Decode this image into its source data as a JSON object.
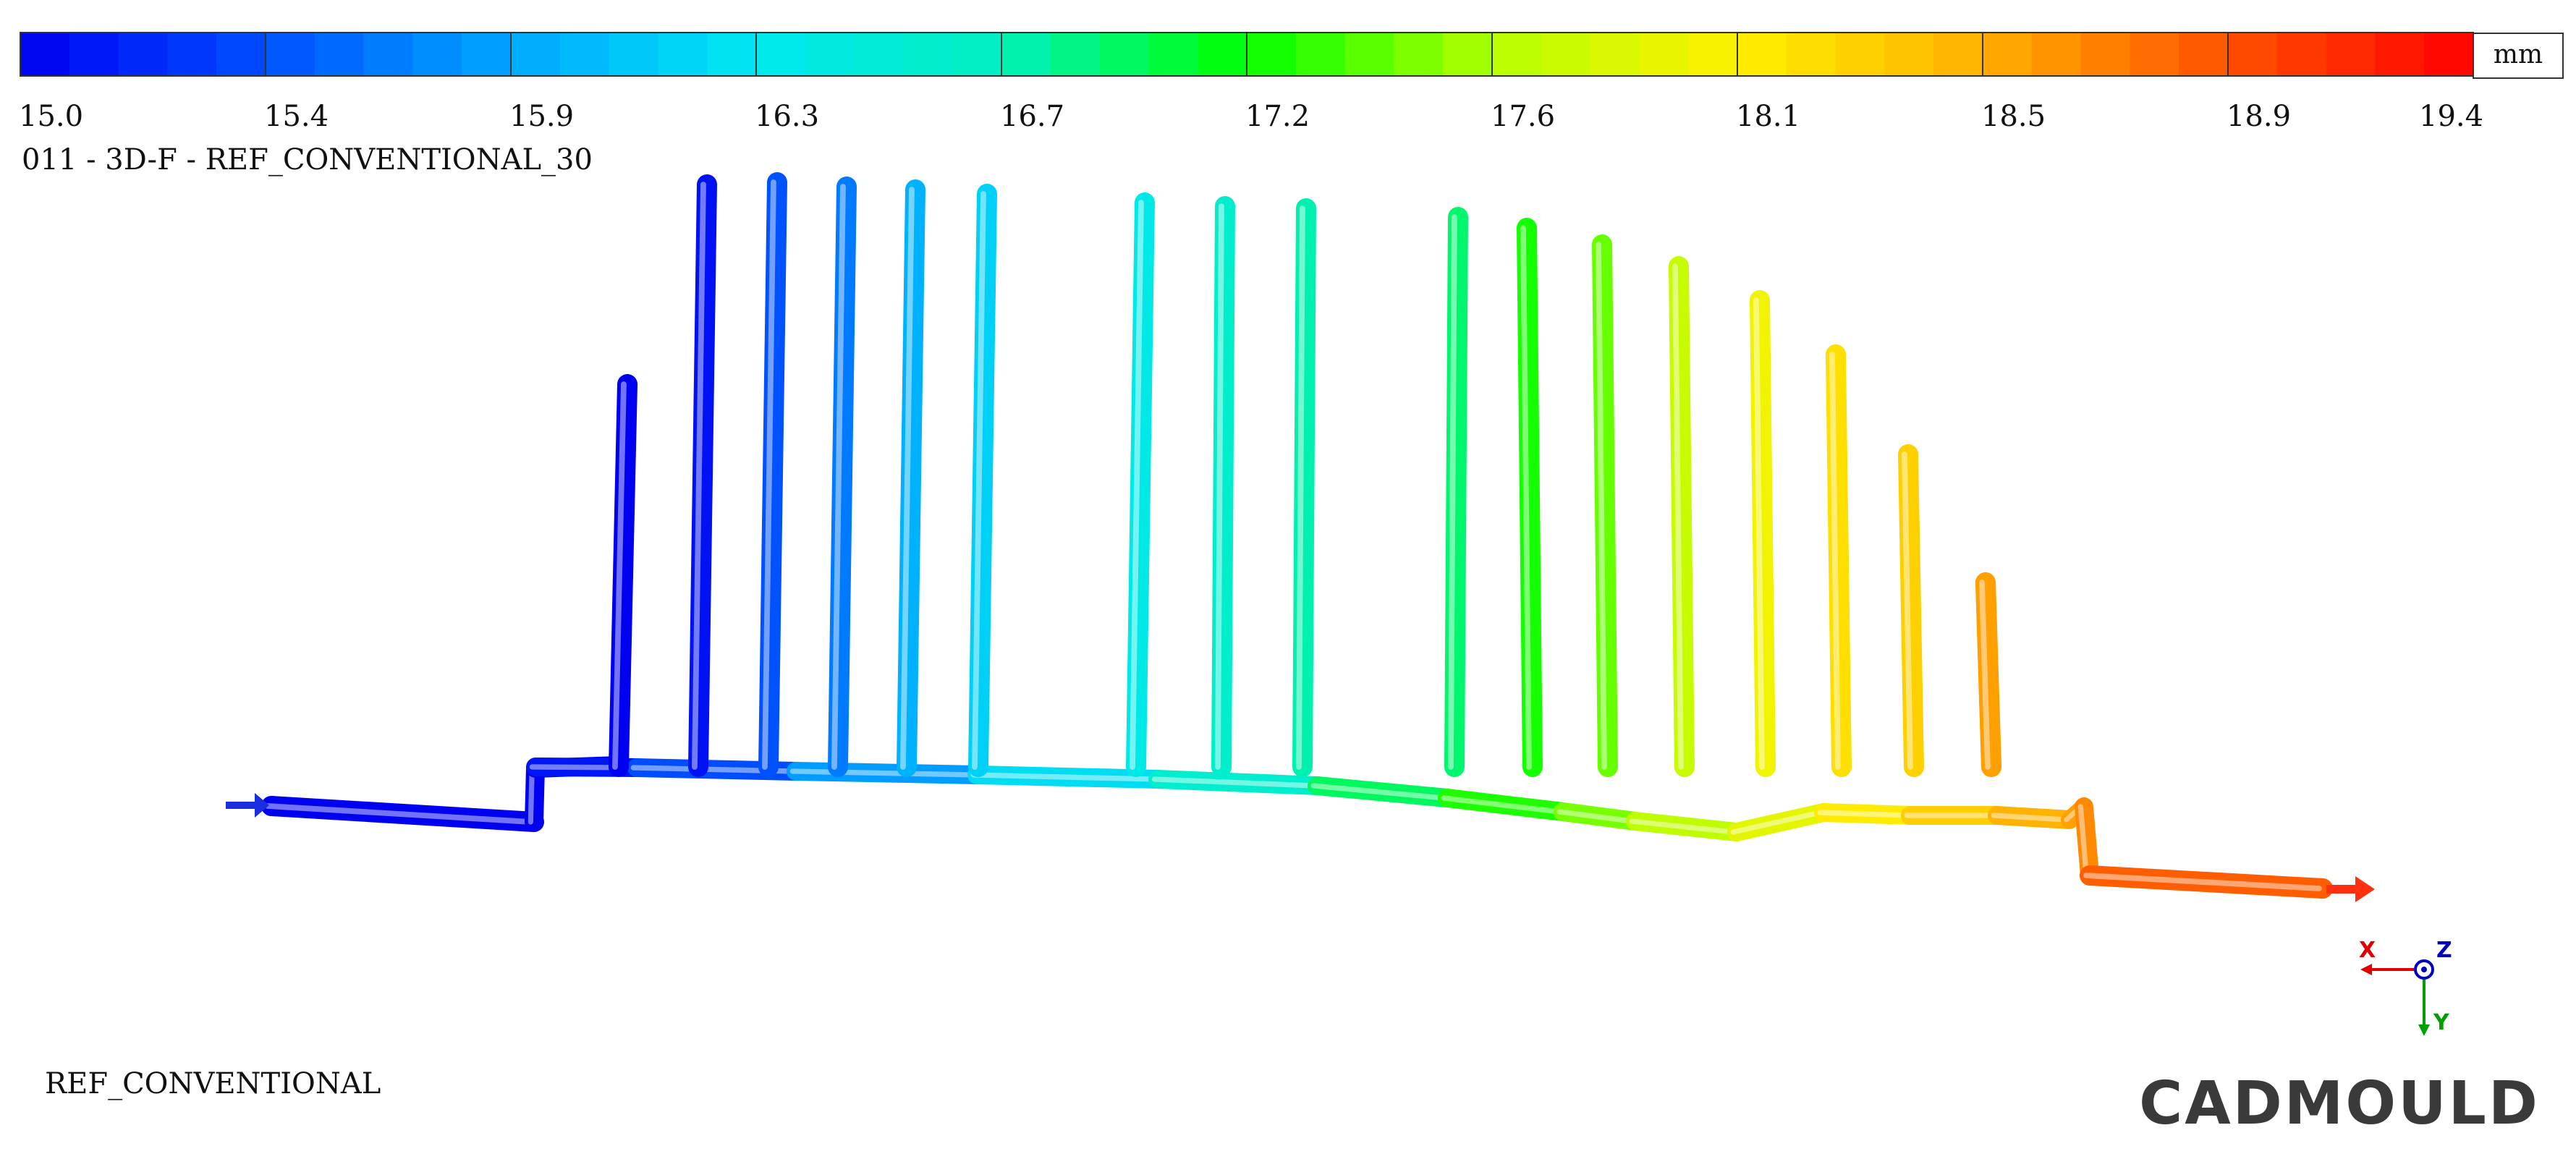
{
  "colorbar": {
    "unit": "mm",
    "min": 15.0,
    "max": 19.4,
    "ticks": [
      "15.0",
      "15.4",
      "15.9",
      "16.3",
      "16.7",
      "17.2",
      "17.6",
      "18.1",
      "18.5",
      "18.9",
      "19.4"
    ],
    "steps": 50,
    "palette": [
      "#0000f0",
      "#0050ff",
      "#00a8ff",
      "#00e8f0",
      "#00f0c0",
      "#00ff00",
      "#b4ff00",
      "#fff000",
      "#ffb000",
      "#ff5000",
      "#ff0000"
    ]
  },
  "result_title": "011 - 3D-F - REF_CONVENTIONAL_30",
  "model_name": "REF_CONVENTIONAL",
  "brand": "CADMOULD",
  "axes": {
    "x": "X",
    "y": "Y",
    "z": "Z",
    "x_color": "#e00000",
    "y_color": "#00a000",
    "z_color": "#0000c0"
  },
  "flow": {
    "inlet_color": "#1a2ee0",
    "outlet_color": "#ff3010"
  },
  "channels": [
    {
      "value": 15.0
    },
    {
      "value": 15.1
    },
    {
      "value": 15.45
    },
    {
      "value": 15.65
    },
    {
      "value": 15.95
    },
    {
      "value": 16.15
    },
    {
      "value": 16.4
    },
    {
      "value": 16.65
    },
    {
      "value": 16.8
    },
    {
      "value": 16.95
    },
    {
      "value": 17.25
    },
    {
      "value": 17.45
    },
    {
      "value": 17.75
    },
    {
      "value": 18.0
    },
    {
      "value": 18.2
    },
    {
      "value": 18.3
    },
    {
      "value": 18.45
    },
    {
      "value": 18.6
    }
  ]
}
